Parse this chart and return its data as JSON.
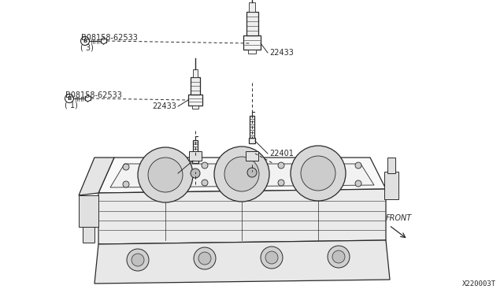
{
  "bg_color": "#ffffff",
  "line_color": "#2a2a2a",
  "part_labels": {
    "bolt_top": "B08158-62533\n( 3)",
    "bolt_mid": "B08158-62533\n( 1)",
    "coil_top": "22433",
    "coil_mid": "22433",
    "plug_top": "22401",
    "plug_mid": "22401"
  },
  "front_label": "FRONT",
  "doc_number": "X220003T"
}
